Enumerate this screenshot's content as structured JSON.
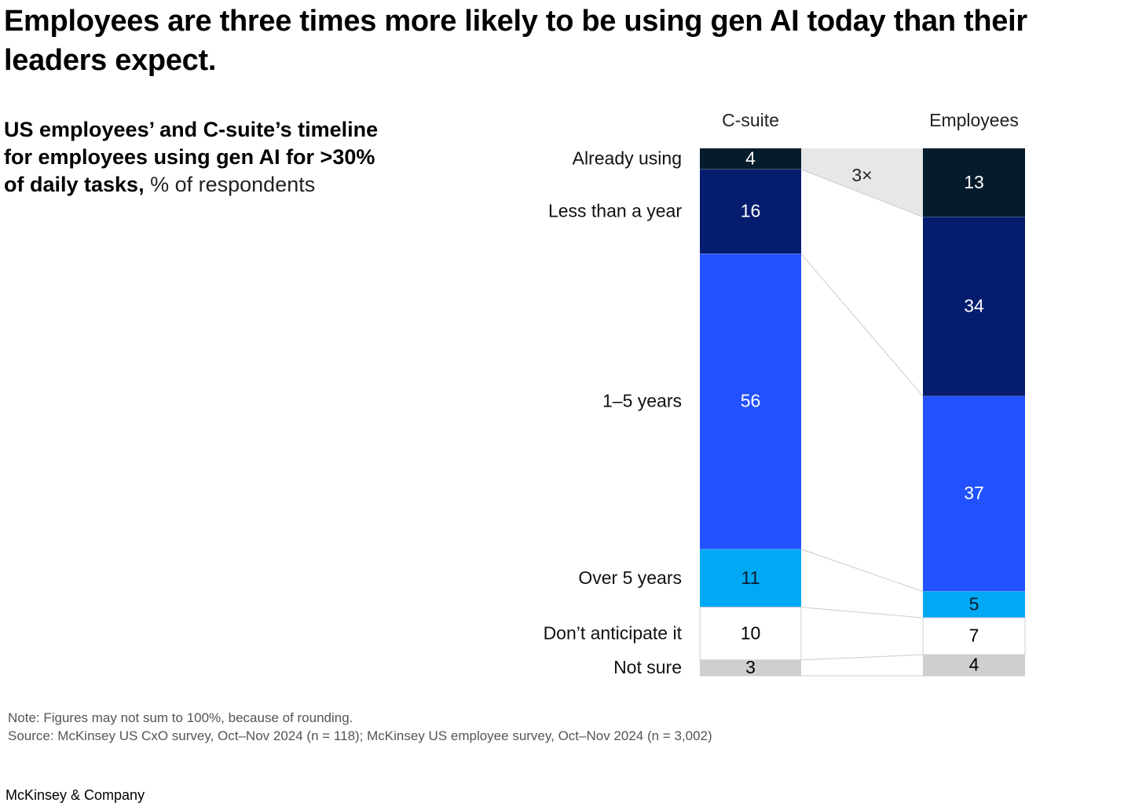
{
  "headline": "Employees are three times more likely to be using gen AI today than their leaders expect.",
  "subtitle": {
    "bold": "US employees’ and C-suite’s timeline for employees using gen AI for >30% of daily tasks,",
    "light": "% of respondents"
  },
  "chart_data": {
    "type": "bar",
    "stacked": true,
    "orientation": "vertical",
    "unit": "% of respondents",
    "categories": [
      "C-suite",
      "Employees"
    ],
    "series": [
      {
        "name": "Already using",
        "values": [
          4,
          13
        ],
        "color": "#051c2c",
        "text_color": "#ffffff"
      },
      {
        "name": "Less than a year",
        "values": [
          16,
          34
        ],
        "color": "#061c6e",
        "text_color": "#ffffff"
      },
      {
        "name": "1–5 years",
        "values": [
          56,
          37
        ],
        "color": "#2251ff",
        "text_color": "#ffffff"
      },
      {
        "name": "Over 5 years",
        "values": [
          11,
          5
        ],
        "color": "#00a9f4",
        "text_color": "#051c2c"
      },
      {
        "name": "Don’t anticipate it",
        "values": [
          10,
          7
        ],
        "color": "#ffffff",
        "text_color": "#000000"
      },
      {
        "name": "Not sure",
        "values": [
          3,
          4
        ],
        "color": "#cfcfcf",
        "text_color": "#000000"
      }
    ],
    "annotation": {
      "text": "3×",
      "between_series": "Already using"
    },
    "connector_color": "#cccccc",
    "highlight_color": "#e6e7e8"
  },
  "note": "Note: Figures may not sum to 100%, because of rounding.",
  "source": "Source: McKinsey US CxO survey, Oct–Nov 2024 (n = 118); McKinsey US employee survey, Oct–Nov 2024 (n = 3,002)",
  "brand": "McKinsey & Company"
}
